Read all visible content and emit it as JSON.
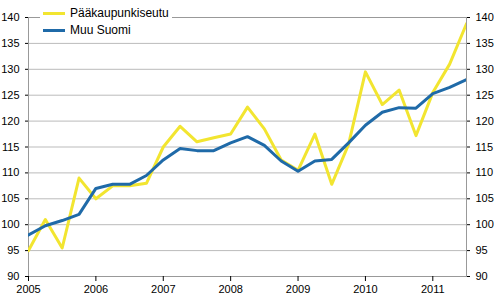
{
  "chart_data": {
    "type": "line",
    "x": [
      2005,
      2005.25,
      2005.5,
      2005.75,
      2006,
      2006.25,
      2006.5,
      2006.75,
      2007,
      2007.25,
      2007.5,
      2007.75,
      2008,
      2008.25,
      2008.5,
      2008.75,
      2009,
      2009.25,
      2009.5,
      2009.75,
      2010,
      2010.25,
      2010.5,
      2010.75,
      2011,
      2011.25,
      2011.5
    ],
    "series": [
      {
        "name": "Pääkaupunkiseutu",
        "color": "#f2e530",
        "values": [
          95,
          101,
          95.5,
          109,
          105,
          107.5,
          107.5,
          108,
          115,
          119,
          116,
          116.8,
          117.5,
          122.7,
          118.5,
          112.5,
          110.5,
          117.5,
          107.8,
          115.5,
          129.5,
          123.2,
          126,
          117.2,
          125.5,
          131,
          138.8
        ]
      },
      {
        "name": "Muu Suomi",
        "color": "#1f6aa8",
        "values": [
          98,
          99.8,
          100.8,
          102,
          107,
          107.8,
          107.8,
          109.5,
          112.5,
          114.7,
          114.3,
          114.3,
          115.8,
          117,
          115.3,
          112.3,
          110.3,
          112.3,
          112.6,
          115.8,
          119.2,
          121.7,
          122.6,
          122.5,
          125.3,
          126.5,
          128
        ]
      }
    ],
    "xlim": [
      2005,
      2011.5
    ],
    "xticks": [
      2005,
      2006,
      2007,
      2008,
      2009,
      2010,
      2011
    ],
    "ylim": [
      90,
      140
    ],
    "yticks": [
      90,
      95,
      100,
      105,
      110,
      115,
      120,
      125,
      130,
      135,
      140
    ],
    "grid": true,
    "legend": "top-left"
  }
}
